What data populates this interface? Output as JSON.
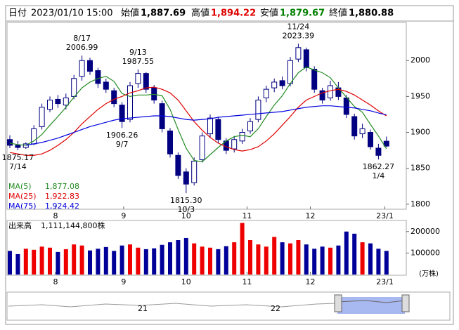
{
  "header": {
    "date_label": "日付",
    "date": "2023/01/10 15:00",
    "open_label": "始値",
    "open": "1,887.69",
    "high_label": "高値",
    "high": "1,894.22",
    "low_label": "安値",
    "low": "1,879.67",
    "close_label": "終値",
    "close": "1,880.88"
  },
  "chart_data": [
    {
      "type": "candlestick",
      "colors": {
        "up": "#ffffff",
        "down": "#000080",
        "edge": "#000080"
      },
      "open": [
        1890,
        1882,
        1879,
        1884,
        1908,
        1932,
        1946,
        1938,
        1950,
        1978,
        2000,
        1986,
        1970,
        1958,
        1938,
        1918,
        1968,
        1982,
        1962,
        1940,
        1902,
        1868,
        1845,
        1830,
        1862,
        1898,
        1918,
        1888,
        1877,
        1888,
        1902,
        1918,
        1948,
        1962,
        1972,
        1968,
        2002,
        2015,
        1988,
        1958,
        1948,
        1962,
        1948,
        1922,
        1898,
        1900,
        1878,
        1887.69
      ],
      "high": [
        1896,
        1888,
        1886,
        1910,
        1940,
        1950,
        1952,
        1954,
        1980,
        2006.99,
        2004,
        1990,
        1975,
        1962,
        1942,
        1970,
        1987.55,
        1984,
        1966,
        1944,
        1906,
        1872,
        1850,
        1865,
        1900,
        1925,
        1922,
        1892,
        1895,
        1905,
        1920,
        1950,
        1965,
        1975,
        1978,
        2005,
        2023.39,
        2018,
        1992,
        1962,
        1972,
        1970,
        1952,
        1926,
        1912,
        1904,
        1884,
        1894.22
      ],
      "low": [
        1878,
        1875.17,
        1877,
        1882,
        1904,
        1928,
        1934,
        1932,
        1946,
        1972,
        1980,
        1962,
        1955,
        1935,
        1906.26,
        1914,
        1962,
        1955,
        1940,
        1900,
        1865,
        1835,
        1815.3,
        1826,
        1858,
        1892,
        1885,
        1870,
        1872,
        1884,
        1898,
        1914,
        1942,
        1956,
        1960,
        1964,
        1998,
        1985,
        1955,
        1940,
        1944,
        1945,
        1920,
        1890,
        1892,
        1876,
        1862.27,
        1879.67
      ],
      "close": [
        1882,
        1879,
        1884,
        1905,
        1935,
        1945,
        1940,
        1948,
        1975,
        2000,
        1985,
        1968,
        1960,
        1940,
        1915,
        1965,
        1982,
        1960,
        1945,
        1905,
        1870,
        1840,
        1828,
        1860,
        1895,
        1920,
        1890,
        1875,
        1890,
        1900,
        1915,
        1945,
        1960,
        1970,
        1965,
        2000,
        2018,
        1990,
        1960,
        1945,
        1965,
        1950,
        1925,
        1895,
        1905,
        1880,
        1868,
        1880.88
      ],
      "series": [
        {
          "name": "MA(5)",
          "color": "#228b22",
          "legend_value": {
            "value": 1877.08,
            "label": "1,877.08"
          },
          "values": [
            1885,
            1883,
            1882,
            1888,
            1897,
            1910,
            1922,
            1935,
            1949,
            1962,
            1970,
            1975,
            1978,
            1971,
            1954,
            1950,
            1952,
            1952,
            1953,
            1951,
            1932,
            1904,
            1878,
            1861,
            1859,
            1869,
            1879,
            1888,
            1894,
            1896,
            1894,
            1905,
            1922,
            1938,
            1951,
            1968,
            1983,
            1991,
            1987,
            1983,
            1976,
            1962,
            1949,
            1936,
            1928,
            1911,
            1895,
            1877.08
          ]
        },
        {
          "name": "MA(25)",
          "color": "#e00000",
          "legend_value": {
            "value": 1922.83,
            "label": "1,922.83"
          },
          "values": [
            1872,
            1870,
            1868,
            1868,
            1870,
            1875,
            1882,
            1890,
            1900,
            1912,
            1922,
            1932,
            1940,
            1946,
            1950,
            1955,
            1958,
            1962,
            1963,
            1960,
            1955,
            1945,
            1930,
            1915,
            1903,
            1893,
            1885,
            1880,
            1876,
            1874,
            1876,
            1880,
            1888,
            1898,
            1910,
            1922,
            1935,
            1945,
            1950,
            1955,
            1958,
            1960,
            1957,
            1952,
            1945,
            1938,
            1930,
            1922.83
          ]
        },
        {
          "name": "MA(75)",
          "color": "#0000e0",
          "legend_value": {
            "value": 1924.42,
            "label": "1,924.42"
          },
          "values": [
            null,
            null,
            1882,
            1884,
            1886,
            1889,
            1892,
            1896,
            1900,
            1904,
            1908,
            1911,
            1914,
            1917,
            1919,
            1920,
            1921,
            1922,
            1923,
            1923,
            1922,
            1920,
            1918,
            1917,
            1918,
            1919,
            1921,
            1922,
            1923,
            1924,
            1925,
            1926,
            1927,
            1928,
            1929,
            1931,
            1933,
            1935,
            1936,
            1937,
            1937,
            1936,
            1935,
            1934,
            1932,
            1930,
            1927,
            1924.42
          ]
        }
      ],
      "annotations": [
        {
          "date": "7/14",
          "value": 1875.17,
          "label": "1875.17"
        },
        {
          "date": "8/17",
          "value": 2006.99,
          "label": "2006.99"
        },
        {
          "date": "9/7",
          "value": 1906.26,
          "label": "1906.26"
        },
        {
          "date": "9/13",
          "value": 1987.55,
          "label": "1987.55"
        },
        {
          "date": "10/3",
          "value": 1815.3,
          "label": "1815.30"
        },
        {
          "date": "11/24",
          "value": 2023.39,
          "label": "2023.39"
        },
        {
          "date": "1/4",
          "value": 1862.27,
          "label": "1862.27"
        }
      ],
      "ylim": [
        1793,
        2053
      ],
      "yticks": [
        1800,
        1850,
        1900,
        1950,
        2000
      ],
      "xticks": [
        {
          "value": 5.7,
          "label": "8"
        },
        {
          "value": 14.2,
          "label": "9"
        },
        {
          "value": 22,
          "label": "10"
        },
        {
          "value": 29.6,
          "label": "11"
        },
        {
          "value": 37.5,
          "label": "12"
        },
        {
          "value": 46.8,
          "label": "23/1"
        }
      ]
    },
    {
      "type": "bar",
      "title": "出来高",
      "total": "1,111,144,800株",
      "unit": "(万株)",
      "colors": {
        "up": "#ee0000",
        "down": "#000099"
      },
      "values": [
        110000,
        95000,
        120000,
        115000,
        130000,
        125000,
        105000,
        118000,
        140000,
        135000,
        112000,
        120000,
        128000,
        110000,
        135000,
        140000,
        125000,
        118000,
        122000,
        138000,
        150000,
        160000,
        170000,
        145000,
        130000,
        125000,
        118000,
        132000,
        150000,
        240000,
        160000,
        140000,
        130000,
        175000,
        150000,
        145000,
        160000,
        140000,
        120000,
        130000,
        125000,
        135000,
        200000,
        190000,
        150000,
        145000,
        120000,
        110000
      ],
      "ylim": [
        0,
        245000
      ],
      "yticks": [
        100000,
        200000
      ],
      "xticks": [
        {
          "value": 5.7,
          "label": "8"
        },
        {
          "value": 14.2,
          "label": "9"
        },
        {
          "value": 22,
          "label": "10"
        },
        {
          "value": 29.6,
          "label": "11"
        },
        {
          "value": 37.5,
          "label": "12"
        },
        {
          "value": 46.8,
          "label": "23/1"
        }
      ]
    }
  ],
  "navigator": {
    "labels": [
      "21",
      "22"
    ]
  }
}
